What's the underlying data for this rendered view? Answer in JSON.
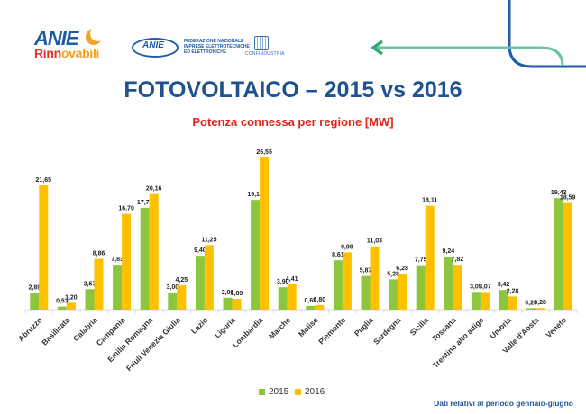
{
  "logos": {
    "anie_rinnovabili": {
      "line1": "ANIE",
      "line2_a": "Rinn",
      "line2_b": "ovabili"
    },
    "anie_federazione": {
      "mark": "ANIE",
      "text": [
        "FEDERAZIONE NAZIONALE",
        "IMPRESE ELETTROTECNICHE",
        "ED ELETTRONICHE"
      ]
    },
    "confindustria": {
      "text": "CONFINDUSTRIA"
    }
  },
  "header": {
    "title": "FOTOVOLTAICO – 2015 vs 2016",
    "arrow_color": "#6cc5a0",
    "line_color": "#1f5ca8"
  },
  "chart_data": {
    "type": "bar",
    "title": "Potenza connessa per regione [MW]",
    "xlabel": "",
    "ylabel": "",
    "ylim": [
      0,
      28
    ],
    "grid": false,
    "legend": "bottom-center",
    "categories": [
      "Abruzzo",
      "Basilicata",
      "Calabria",
      "Campania",
      "Emilia Romagna",
      "Friuli Venezia Giulia",
      "Lazio",
      "Liguria",
      "Lombardia",
      "Marche",
      "Molise",
      "Piemonte",
      "Puglia",
      "Sardegna",
      "Sicilia",
      "Toscana",
      "Trentino alto adige",
      "Umbria",
      "Valle d'Aosta",
      "Veneto"
    ],
    "series": [
      {
        "name": "2015",
        "color": "#8cc63f",
        "values": [
          2.89,
          0.53,
          3.57,
          7.83,
          17.77,
          3.0,
          9.4,
          2.08,
          19.13,
          3.9,
          0.65,
          8.61,
          5.87,
          5.28,
          7.75,
          9.24,
          3.09,
          3.42,
          0.26,
          19.43
        ],
        "labels": [
          "2,89",
          "0,53",
          "3,57",
          "7,83",
          "17,77",
          "3,00",
          "9,40",
          "2,08",
          "19,13",
          "3,90",
          "0,65",
          "8,61",
          "5,87",
          "5,28",
          "7,75",
          "9,24",
          "3,09",
          "3,42",
          "0,26",
          "19,43"
        ]
      },
      {
        "name": "2016",
        "color": "#ffc000",
        "values": [
          21.65,
          1.2,
          8.86,
          16.7,
          20.16,
          4.25,
          11.25,
          1.89,
          26.55,
          4.41,
          0.8,
          9.98,
          11.03,
          6.28,
          18.11,
          7.82,
          3.07,
          2.28,
          0.28,
          18.59
        ],
        "labels": [
          "21,65",
          "1,20",
          "8,86",
          "16,70",
          "20,16",
          "4,25",
          "11,25",
          "1,89",
          "26,55",
          "4,41",
          "0,80",
          "9,98",
          "11,03",
          "6,28",
          "18,11",
          "7,82",
          "3,07",
          "2,28",
          "0,28",
          "18,59"
        ]
      }
    ]
  },
  "footnote": "Dati relativi al periodo gennaio-giugno"
}
